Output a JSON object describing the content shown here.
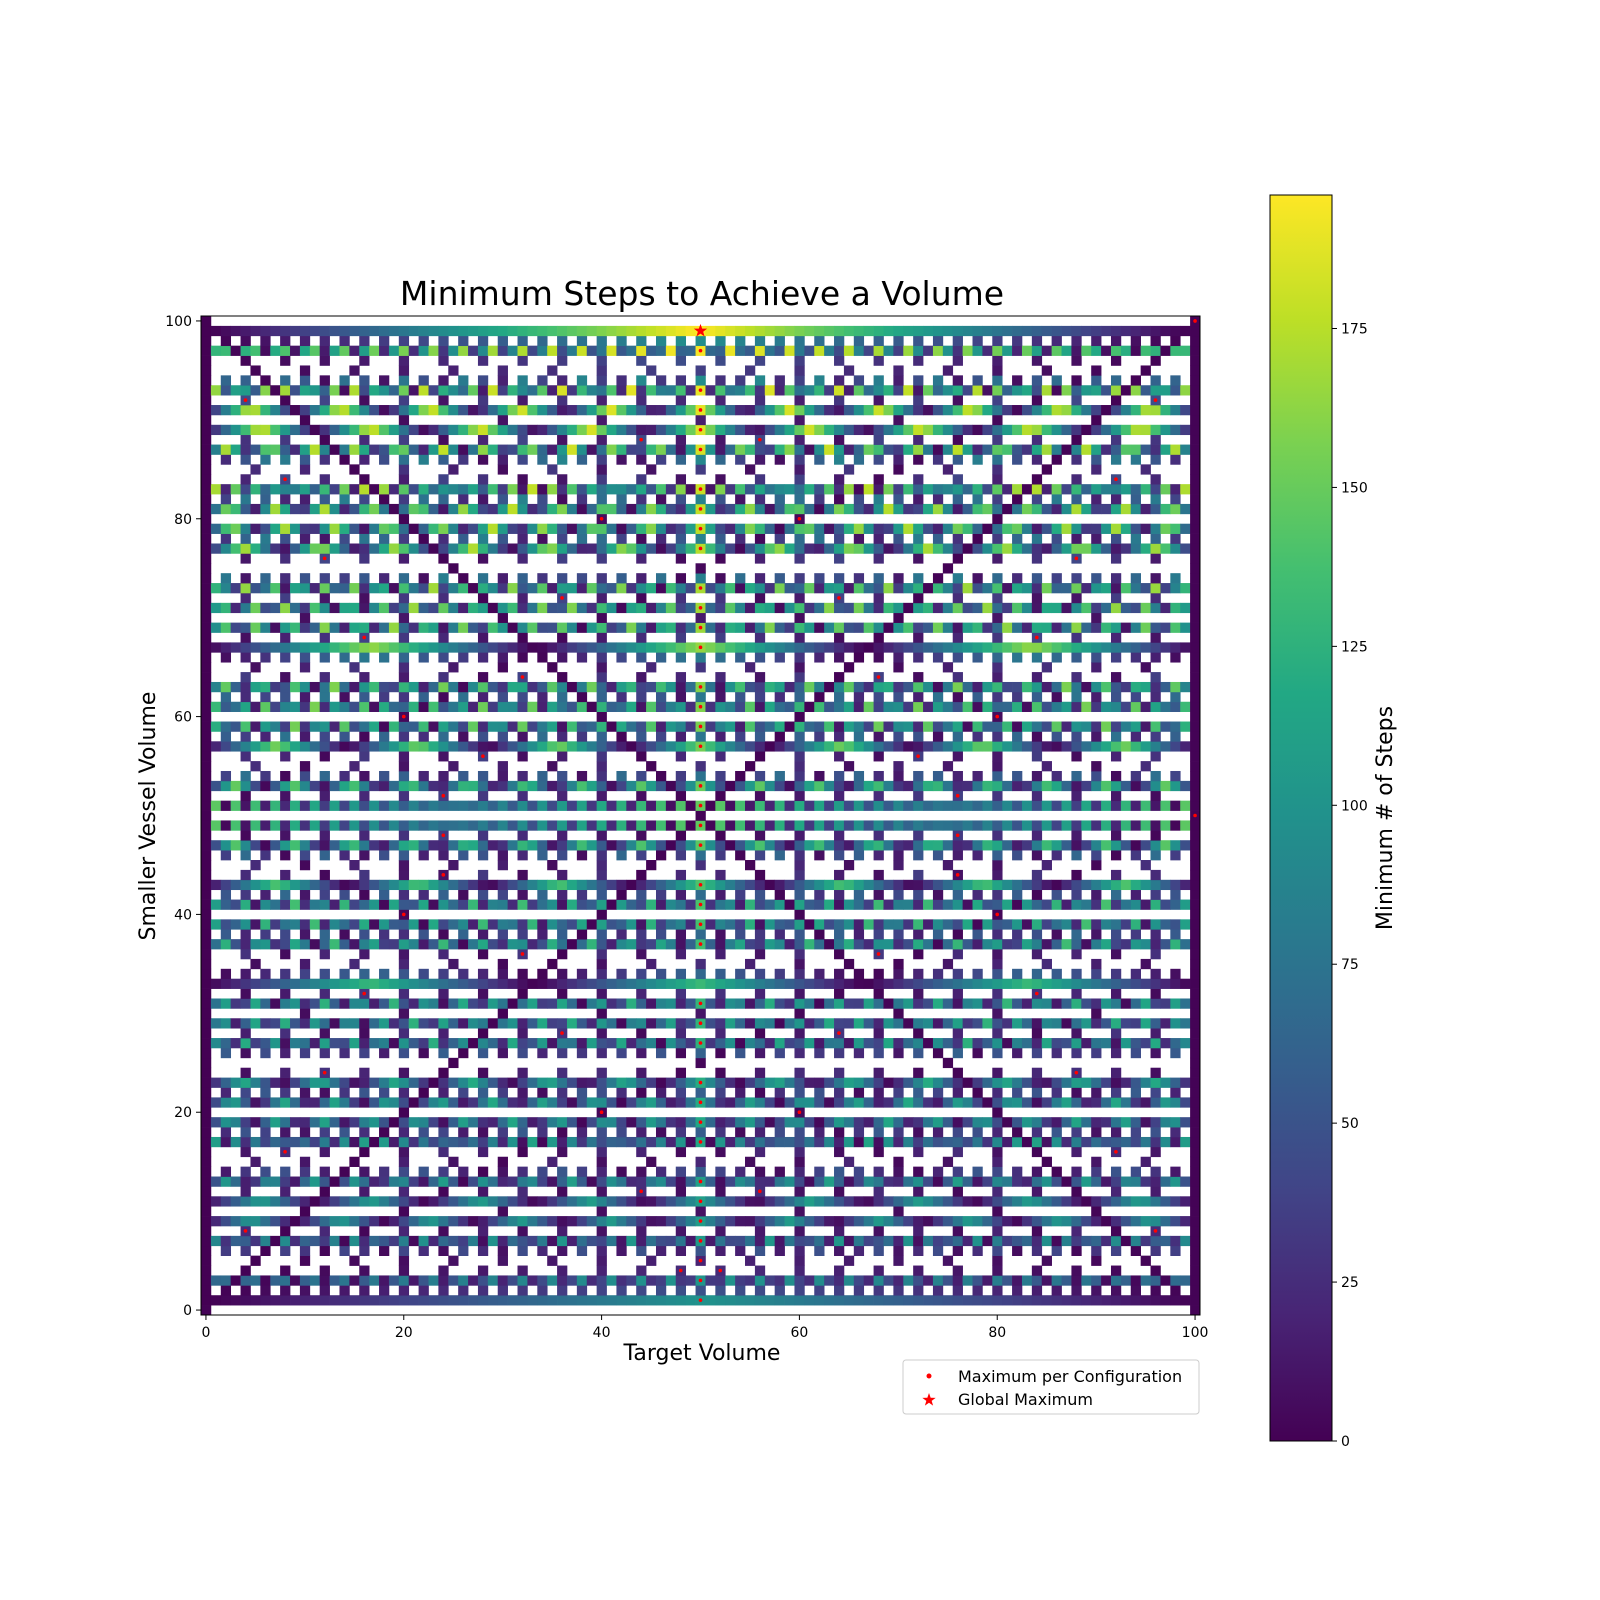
{
  "chart_data": {
    "type": "heatmap",
    "title": "Minimum Steps to Achieve a Volume",
    "xlabel": "Target Volume",
    "ylabel": "Smaller Vessel Volume",
    "colorbar_label": "Minimum # of Steps",
    "colormap": "viridis",
    "xlim": [
      0,
      100
    ],
    "ylim": [
      0,
      100
    ],
    "color_range": [
      0,
      196
    ],
    "x_ticks": [
      0,
      20,
      40,
      60,
      80,
      100
    ],
    "y_ticks": [
      0,
      20,
      40,
      60,
      80,
      100
    ],
    "colorbar_ticks": [
      0,
      25,
      50,
      75,
      100,
      125,
      150,
      175
    ],
    "larger_vessel_volume": 100,
    "unreachable_cells": "blank (white)",
    "grid": false,
    "legend_position": "below-right",
    "legend": [
      {
        "label": "Maximum per Configuration",
        "marker": "dot",
        "color": "#ff0000"
      },
      {
        "label": "Global Maximum",
        "marker": "star",
        "color": "#ff0000"
      }
    ],
    "global_maximum": {
      "x": 50,
      "y": 99
    },
    "maximum_per_configuration": [
      {
        "y": 1,
        "x": 50
      },
      {
        "y": 3,
        "x": 50
      },
      {
        "y": 4,
        "x": 48
      },
      {
        "y": 4,
        "x": 52
      },
      {
        "y": 5,
        "x": 50
      },
      {
        "y": 7,
        "x": 50
      },
      {
        "y": 8,
        "x": 4
      },
      {
        "y": 8,
        "x": 96
      },
      {
        "y": 9,
        "x": 50
      },
      {
        "y": 11,
        "x": 50
      },
      {
        "y": 12,
        "x": 44
      },
      {
        "y": 12,
        "x": 56
      },
      {
        "y": 13,
        "x": 50
      },
      {
        "y": 16,
        "x": 8
      },
      {
        "y": 16,
        "x": 92
      },
      {
        "y": 17,
        "x": 50
      },
      {
        "y": 19,
        "x": 50
      },
      {
        "y": 20,
        "x": 40
      },
      {
        "y": 20,
        "x": 60
      },
      {
        "y": 21,
        "x": 50
      },
      {
        "y": 23,
        "x": 50
      },
      {
        "y": 24,
        "x": 12
      },
      {
        "y": 24,
        "x": 88
      },
      {
        "y": 27,
        "x": 50
      },
      {
        "y": 28,
        "x": 36
      },
      {
        "y": 28,
        "x": 64
      },
      {
        "y": 29,
        "x": 50
      },
      {
        "y": 31,
        "x": 50
      },
      {
        "y": 32,
        "x": 16
      },
      {
        "y": 32,
        "x": 84
      },
      {
        "y": 36,
        "x": 32
      },
      {
        "y": 36,
        "x": 68
      },
      {
        "y": 37,
        "x": 50
      },
      {
        "y": 39,
        "x": 50
      },
      {
        "y": 40,
        "x": 20
      },
      {
        "y": 40,
        "x": 80
      },
      {
        "y": 41,
        "x": 50
      },
      {
        "y": 43,
        "x": 50
      },
      {
        "y": 44,
        "x": 24
      },
      {
        "y": 44,
        "x": 76
      },
      {
        "y": 47,
        "x": 50
      },
      {
        "y": 48,
        "x": 24
      },
      {
        "y": 48,
        "x": 76
      },
      {
        "y": 49,
        "x": 50
      },
      {
        "y": 50,
        "x": 100
      },
      {
        "y": 51,
        "x": 50
      },
      {
        "y": 52,
        "x": 24
      },
      {
        "y": 52,
        "x": 76
      },
      {
        "y": 53,
        "x": 50
      },
      {
        "y": 56,
        "x": 28
      },
      {
        "y": 56,
        "x": 72
      },
      {
        "y": 57,
        "x": 50
      },
      {
        "y": 59,
        "x": 50
      },
      {
        "y": 60,
        "x": 20
      },
      {
        "y": 60,
        "x": 80
      },
      {
        "y": 61,
        "x": 50
      },
      {
        "y": 63,
        "x": 50
      },
      {
        "y": 64,
        "x": 32
      },
      {
        "y": 64,
        "x": 68
      },
      {
        "y": 67,
        "x": 50
      },
      {
        "y": 68,
        "x": 16
      },
      {
        "y": 68,
        "x": 84
      },
      {
        "y": 69,
        "x": 50
      },
      {
        "y": 71,
        "x": 50
      },
      {
        "y": 72,
        "x": 36
      },
      {
        "y": 72,
        "x": 64
      },
      {
        "y": 73,
        "x": 50
      },
      {
        "y": 76,
        "x": 12
      },
      {
        "y": 76,
        "x": 88
      },
      {
        "y": 77,
        "x": 50
      },
      {
        "y": 79,
        "x": 50
      },
      {
        "y": 80,
        "x": 40
      },
      {
        "y": 80,
        "x": 60
      },
      {
        "y": 81,
        "x": 50
      },
      {
        "y": 83,
        "x": 50
      },
      {
        "y": 84,
        "x": 8
      },
      {
        "y": 84,
        "x": 92
      },
      {
        "y": 87,
        "x": 50
      },
      {
        "y": 88,
        "x": 44
      },
      {
        "y": 88,
        "x": 56
      },
      {
        "y": 89,
        "x": 50
      },
      {
        "y": 91,
        "x": 50
      },
      {
        "y": 92,
        "x": 4
      },
      {
        "y": 92,
        "x": 96
      },
      {
        "y": 93,
        "x": 50
      },
      {
        "y": 97,
        "x": 50
      },
      {
        "y": 100,
        "x": 100
      }
    ]
  }
}
